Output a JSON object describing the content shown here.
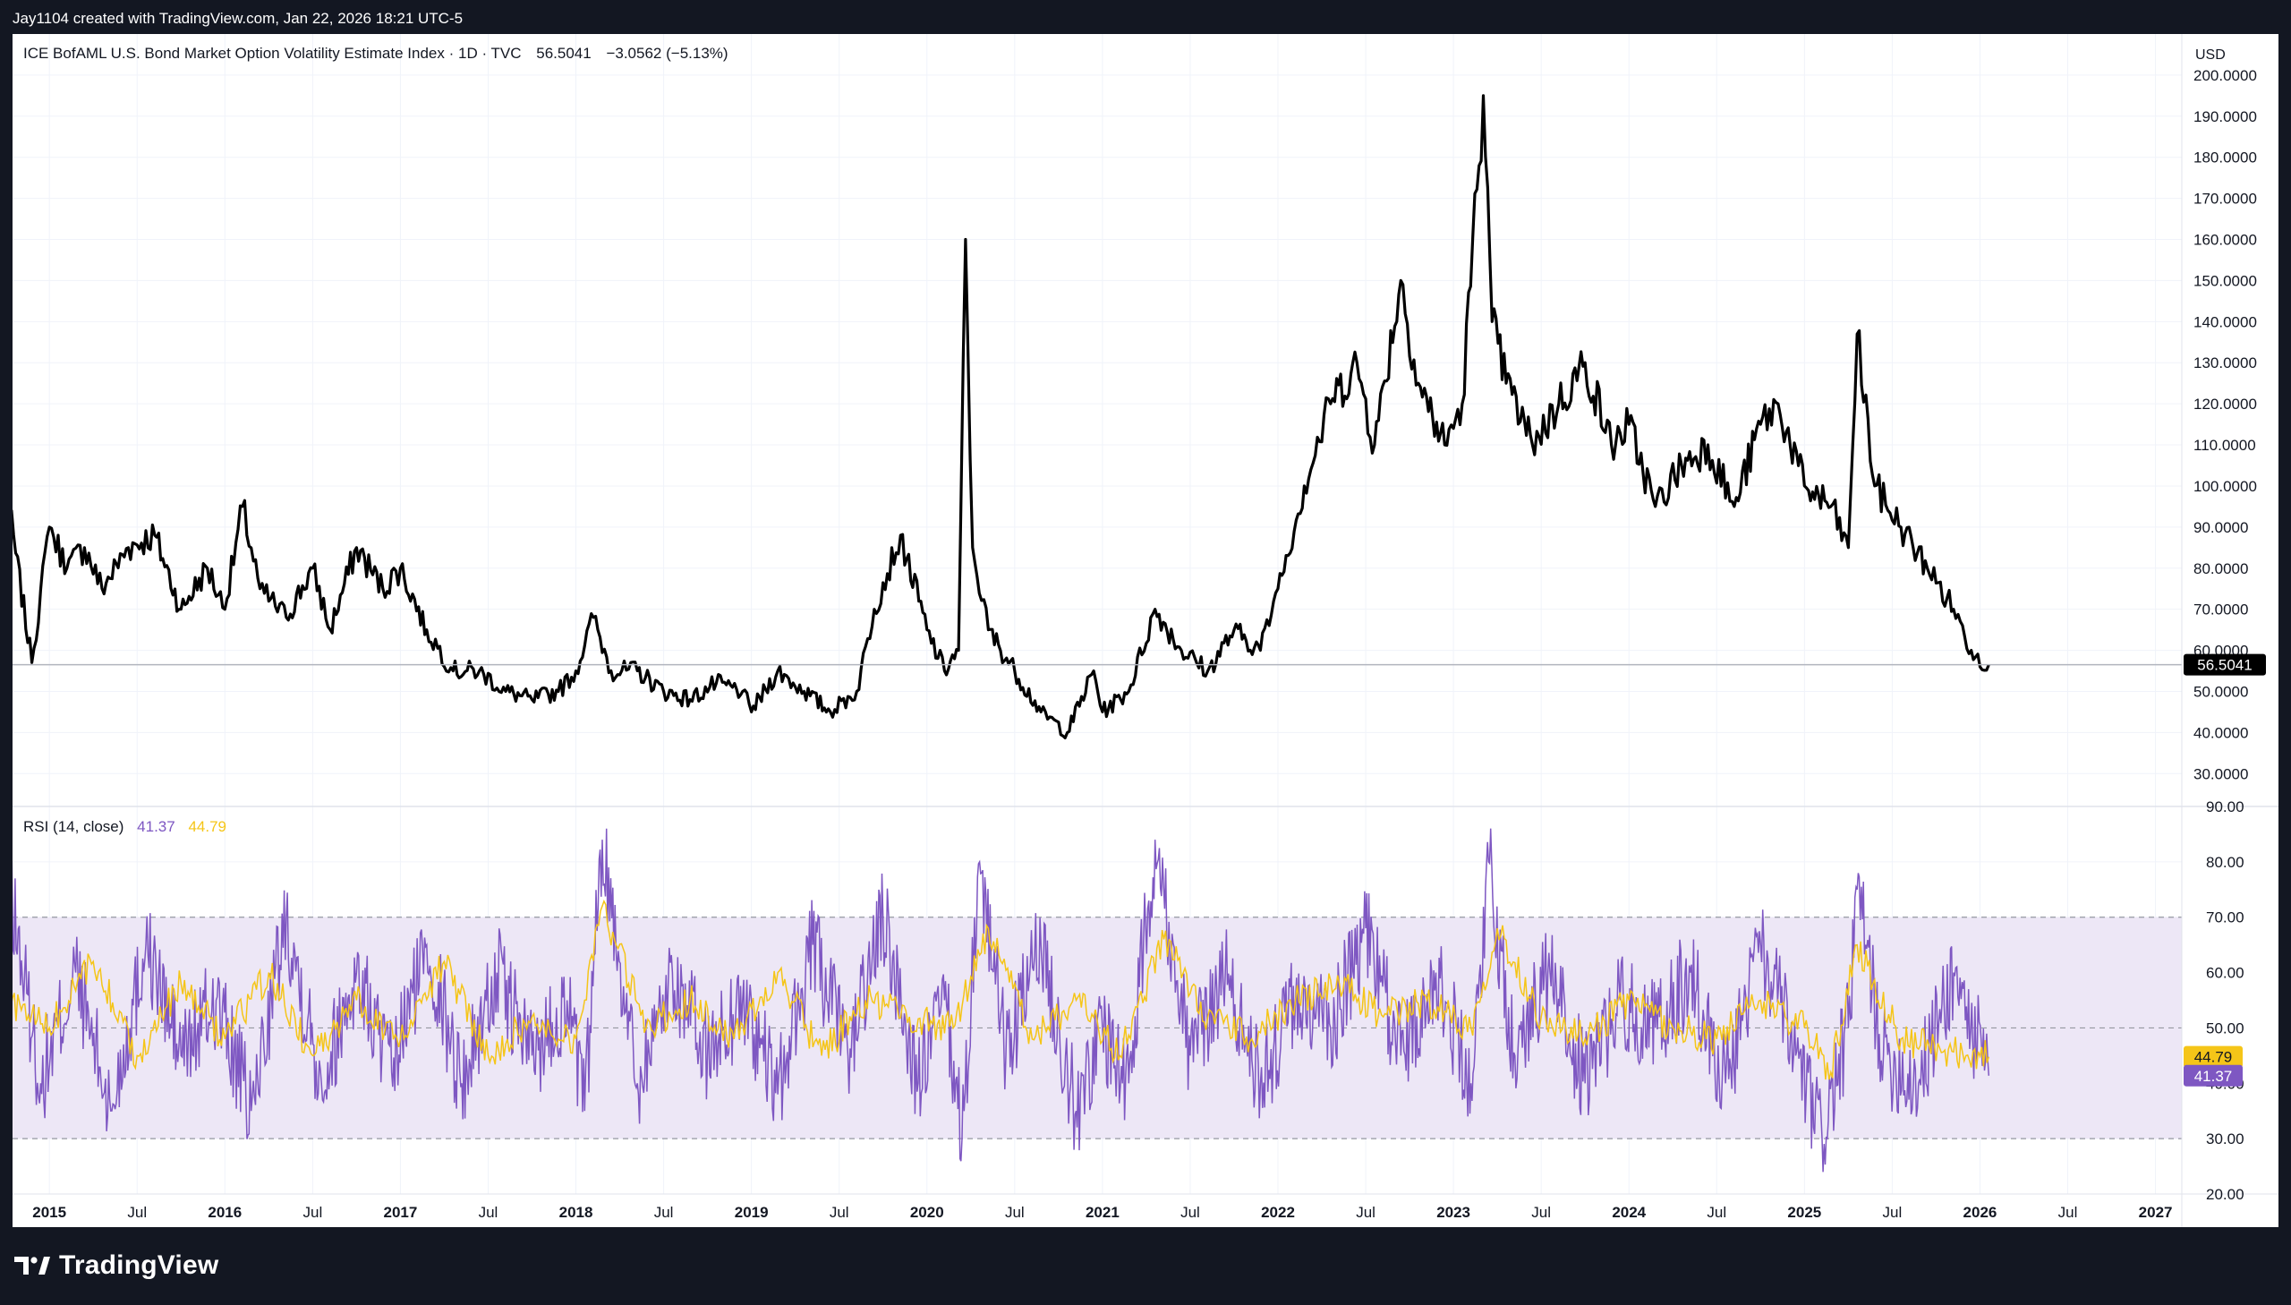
{
  "credit": "Jay1104 created with TradingView.com, Jan 22, 2026 18:21 UTC-5",
  "brand": {
    "name": "TradingView",
    "logo_icon": "tradingview-logo-icon"
  },
  "currency": "USD",
  "legend": {
    "main": {
      "name": "ICE BofAML U.S. Bond Market Option Volatility Estimate Index",
      "interval": "1D",
      "source": "TVC",
      "last": "56.5041",
      "change": "−3.0562 (−5.13%)"
    },
    "rsi": {
      "name": "RSI (14, close)",
      "rsi": "41.37",
      "ma": "44.79"
    }
  },
  "colors": {
    "price_line": "#000000",
    "rsi_line": "#7e57c2",
    "rsi_ma": "#f5c518",
    "rsi_band": "#ede7f6",
    "last_tag": "#000000"
  },
  "chart_data": [
    {
      "type": "line",
      "series": [
        {
          "name": "ICE BofAML U.S. Bond Market Option Volatility Estimate Index",
          "x": [
            2014.75,
            2014.9,
            2015.0,
            2015.1,
            2015.2,
            2015.3,
            2015.45,
            2015.6,
            2015.75,
            2015.9,
            2016.0,
            2016.1,
            2016.2,
            2016.35,
            2016.5,
            2016.6,
            2016.75,
            2016.9,
            2017.0,
            2017.15,
            2017.3,
            2017.45,
            2017.6,
            2017.75,
            2017.9,
            2018.0,
            2018.1,
            2018.2,
            2018.35,
            2018.5,
            2018.65,
            2018.8,
            2018.95,
            2019.0,
            2019.15,
            2019.3,
            2019.45,
            2019.6,
            2019.7,
            2019.85,
            2020.0,
            2020.1,
            2020.18,
            2020.22,
            2020.26,
            2020.35,
            2020.5,
            2020.65,
            2020.8,
            2020.95,
            2021.0,
            2021.15,
            2021.3,
            2021.45,
            2021.6,
            2021.75,
            2021.9,
            2022.0,
            2022.15,
            2022.3,
            2022.45,
            2022.55,
            2022.7,
            2022.8,
            2022.95,
            2023.05,
            2023.17,
            2023.22,
            2023.3,
            2023.45,
            2023.6,
            2023.75,
            2023.9,
            2024.0,
            2024.15,
            2024.3,
            2024.45,
            2024.6,
            2024.75,
            2024.85,
            2025.0,
            2025.15,
            2025.25,
            2025.3,
            2025.4,
            2025.55,
            2025.7,
            2025.85,
            2025.95,
            2026.05
          ],
          "values": [
            100,
            57,
            90,
            80,
            85,
            75,
            85,
            88,
            70,
            80,
            70,
            95,
            75,
            68,
            80,
            65,
            85,
            75,
            80,
            65,
            55,
            55,
            50,
            48,
            50,
            55,
            68,
            55,
            55,
            50,
            48,
            52,
            50,
            45,
            55,
            50,
            45,
            50,
            70,
            88,
            65,
            55,
            60,
            160,
            85,
            65,
            55,
            45,
            40,
            55,
            45,
            50,
            70,
            60,
            55,
            65,
            60,
            75,
            100,
            120,
            130,
            110,
            150,
            125,
            110,
            120,
            195,
            140,
            125,
            110,
            120,
            130,
            110,
            115,
            95,
            105,
            110,
            95,
            115,
            120,
            100,
            95,
            85,
            137,
            100,
            90,
            80,
            70,
            60,
            56.5
          ]
        }
      ],
      "currency": "USD",
      "last_value": 56.5041,
      "x_ticks": [
        "2015",
        "Jul",
        "2016",
        "Jul",
        "2017",
        "Jul",
        "2018",
        "Jul",
        "2019",
        "Jul",
        "2020",
        "Jul",
        "2021",
        "Jul",
        "2022",
        "Jul",
        "2023",
        "Jul",
        "2024",
        "Jul",
        "2025",
        "Jul",
        "2026",
        "Jul",
        "2027"
      ],
      "y_ticks": [
        "30.0000",
        "40.0000",
        "50.0000",
        "60.0000",
        "70.0000",
        "80.0000",
        "90.0000",
        "100.0000",
        "110.0000",
        "120.0000",
        "130.0000",
        "140.0000",
        "150.0000",
        "160.0000",
        "170.0000",
        "180.0000",
        "190.0000",
        "200.0000"
      ],
      "xlim": [
        2014.79,
        2027.15
      ],
      "ylim": [
        22,
        210
      ],
      "grid": true
    },
    {
      "type": "line",
      "series": [
        {
          "name": "RSI",
          "x": [
            2014.75,
            2014.95,
            2015.15,
            2015.35,
            2015.55,
            2015.75,
            2015.95,
            2016.15,
            2016.35,
            2016.55,
            2016.75,
            2016.95,
            2017.15,
            2017.35,
            2017.55,
            2017.75,
            2017.95,
            2018.05,
            2018.15,
            2018.35,
            2018.55,
            2018.75,
            2018.95,
            2019.15,
            2019.35,
            2019.55,
            2019.75,
            2019.95,
            2020.1,
            2020.2,
            2020.3,
            2020.45,
            2020.65,
            2020.85,
            2021.0,
            2021.15,
            2021.3,
            2021.5,
            2021.7,
            2021.9,
            2022.1,
            2022.3,
            2022.5,
            2022.7,
            2022.9,
            2023.1,
            2023.2,
            2023.35,
            2023.55,
            2023.75,
            2023.95,
            2024.15,
            2024.35,
            2024.55,
            2024.75,
            2024.95,
            2025.1,
            2025.25,
            2025.3,
            2025.45,
            2025.65,
            2025.85,
            2026.05
          ],
          "values": [
            80,
            40,
            60,
            35,
            65,
            45,
            55,
            35,
            70,
            40,
            60,
            42,
            65,
            40,
            60,
            45,
            55,
            35,
            84,
            40,
            60,
            45,
            55,
            38,
            65,
            45,
            70,
            40,
            55,
            30,
            80,
            45,
            65,
            35,
            50,
            40,
            84,
            45,
            60,
            40,
            55,
            50,
            68,
            45,
            60,
            40,
            80,
            45,
            60,
            40,
            55,
            50,
            60,
            40,
            65,
            45,
            30,
            50,
            75,
            45,
            40,
            60,
            41.37
          ]
        },
        {
          "name": "RSI-based MA",
          "x": [
            2014.75,
            2015.0,
            2015.25,
            2015.5,
            2015.75,
            2016.0,
            2016.25,
            2016.5,
            2016.75,
            2017.0,
            2017.25,
            2017.5,
            2017.75,
            2018.0,
            2018.15,
            2018.4,
            2018.65,
            2018.9,
            2019.15,
            2019.4,
            2019.65,
            2019.9,
            2020.15,
            2020.35,
            2020.6,
            2020.85,
            2021.1,
            2021.35,
            2021.6,
            2021.85,
            2022.1,
            2022.35,
            2022.6,
            2022.85,
            2023.1,
            2023.25,
            2023.5,
            2023.75,
            2024.0,
            2024.25,
            2024.5,
            2024.75,
            2025.0,
            2025.15,
            2025.3,
            2025.55,
            2025.8,
            2026.05
          ],
          "values": [
            55,
            50,
            62,
            45,
            58,
            48,
            60,
            45,
            55,
            48,
            62,
            45,
            52,
            48,
            72,
            50,
            55,
            48,
            60,
            45,
            55,
            52,
            50,
            68,
            48,
            55,
            45,
            66,
            52,
            48,
            55,
            58,
            52,
            55,
            50,
            68,
            52,
            48,
            55,
            50,
            48,
            55,
            50,
            42,
            65,
            48,
            46,
            44.79
          ]
        }
      ],
      "rsi_last": 41.37,
      "ma_last": 44.79,
      "y_ticks": [
        "20.00",
        "30.00",
        "40.00",
        "50.00",
        "60.00",
        "70.00",
        "80.00",
        "90.00"
      ],
      "bands": {
        "upper": 70,
        "middle": 50,
        "lower": 30
      },
      "ylim": [
        20,
        90
      ],
      "grid": true
    }
  ]
}
